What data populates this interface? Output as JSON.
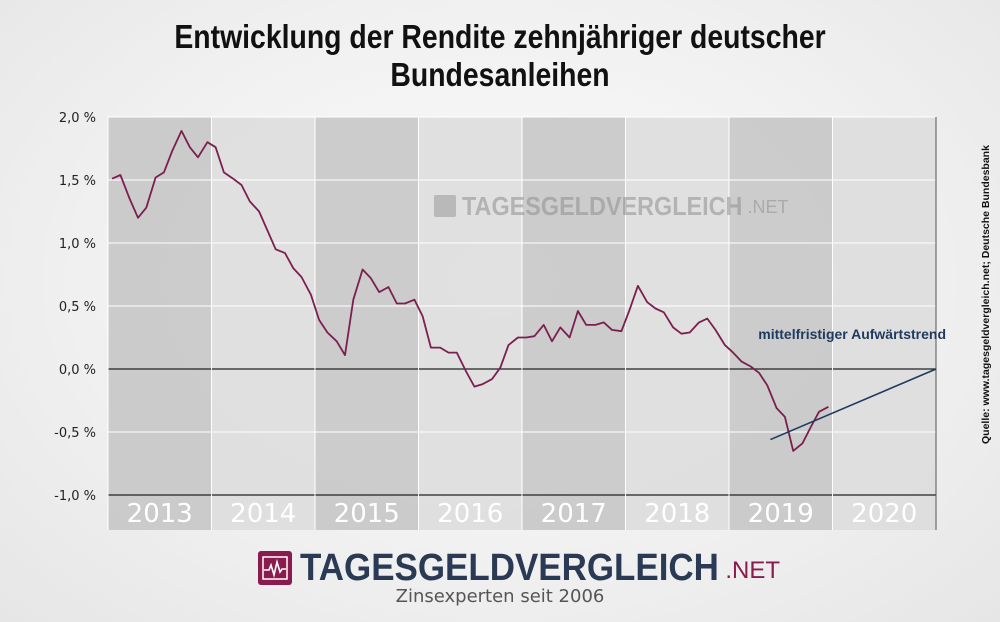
{
  "title": "Entwicklung der Rendite zehnjähriger deutscher Bundesanleihen",
  "source": "Quelle: www.tagesgeldvergleich.net; Deutsche Bundesbank",
  "watermark": {
    "brand": "TAGESGELDVERGLEICH",
    "tld": ".NET"
  },
  "footer": {
    "brand": "TAGESGELDVERGLEICH",
    "tld": ".NET",
    "tagline": "Zinsexperten seit 2006"
  },
  "colors": {
    "series": "#7b1f4f",
    "trendline": "#1f3a5f",
    "brand": "#8a1b4e",
    "brand_text": "#2a3a54"
  },
  "chart_data": {
    "type": "line",
    "title": "Entwicklung der Rendite zehnjähriger deutscher Bundesanleihen",
    "xlabel": "",
    "ylabel": "",
    "ylim": [
      -1.0,
      2.0
    ],
    "xlim": [
      2013.0,
      2021.0
    ],
    "y_ticks": [
      2.0,
      1.5,
      1.0,
      0.5,
      0.0,
      -0.5,
      -1.0
    ],
    "y_tick_labels": [
      "2,0 %",
      "1,5 %",
      "1,0 %",
      "0,5 %",
      "0,0 %",
      "-0,5 %",
      "-1,0 %"
    ],
    "x_categories": [
      "2013",
      "2014",
      "2015",
      "2016",
      "2017",
      "2018",
      "2019",
      "2020"
    ],
    "grid": "vertical year bands, horizontal line at 0",
    "series": [
      {
        "name": "",
        "x": [
          2013.04,
          2013.12,
          2013.21,
          2013.29,
          2013.37,
          2013.46,
          2013.54,
          2013.62,
          2013.71,
          2013.79,
          2013.87,
          2013.96,
          2014.04,
          2014.12,
          2014.21,
          2014.29,
          2014.37,
          2014.46,
          2014.54,
          2014.62,
          2014.71,
          2014.79,
          2014.87,
          2014.96,
          2015.04,
          2015.12,
          2015.21,
          2015.29,
          2015.37,
          2015.46,
          2015.54,
          2015.62,
          2015.71,
          2015.79,
          2015.87,
          2015.96,
          2016.04,
          2016.12,
          2016.21,
          2016.29,
          2016.37,
          2016.46,
          2016.54,
          2016.62,
          2016.71,
          2016.79,
          2016.87,
          2016.96,
          2017.04,
          2017.12,
          2017.21,
          2017.29,
          2017.37,
          2017.46,
          2017.54,
          2017.62,
          2017.71,
          2017.79,
          2017.87,
          2017.96,
          2018.04,
          2018.12,
          2018.21,
          2018.29,
          2018.37,
          2018.46,
          2018.54,
          2018.62,
          2018.71,
          2018.79,
          2018.87,
          2018.96,
          2019.04,
          2019.12,
          2019.21,
          2019.29,
          2019.37,
          2019.46,
          2019.54,
          2019.62,
          2019.71,
          2019.79,
          2019.87,
          2019.96
        ],
        "values": [
          1.51,
          1.54,
          1.35,
          1.2,
          1.28,
          1.52,
          1.56,
          1.73,
          1.89,
          1.76,
          1.68,
          1.8,
          1.76,
          1.56,
          1.51,
          1.46,
          1.33,
          1.25,
          1.1,
          0.95,
          0.92,
          0.8,
          0.73,
          0.59,
          0.39,
          0.29,
          0.22,
          0.11,
          0.55,
          0.79,
          0.72,
          0.61,
          0.65,
          0.52,
          0.52,
          0.55,
          0.42,
          0.17,
          0.17,
          0.13,
          0.13,
          -0.02,
          -0.14,
          -0.12,
          -0.08,
          0.01,
          0.19,
          0.25,
          0.25,
          0.26,
          0.35,
          0.22,
          0.33,
          0.25,
          0.46,
          0.35,
          0.35,
          0.37,
          0.31,
          0.3,
          0.47,
          0.66,
          0.53,
          0.48,
          0.45,
          0.33,
          0.28,
          0.29,
          0.37,
          0.4,
          0.31,
          0.19,
          0.13,
          0.06,
          0.02,
          -0.03,
          -0.13,
          -0.31,
          -0.38,
          -0.65,
          -0.59,
          -0.46,
          -0.34,
          -0.3
        ]
      }
    ],
    "annotations": [
      {
        "text": "mittelfristiger Aufwärtstrend",
        "type": "trend-line",
        "from": [
          2019.4,
          -0.56
        ],
        "to": [
          2021.0,
          0.0
        ]
      }
    ]
  }
}
